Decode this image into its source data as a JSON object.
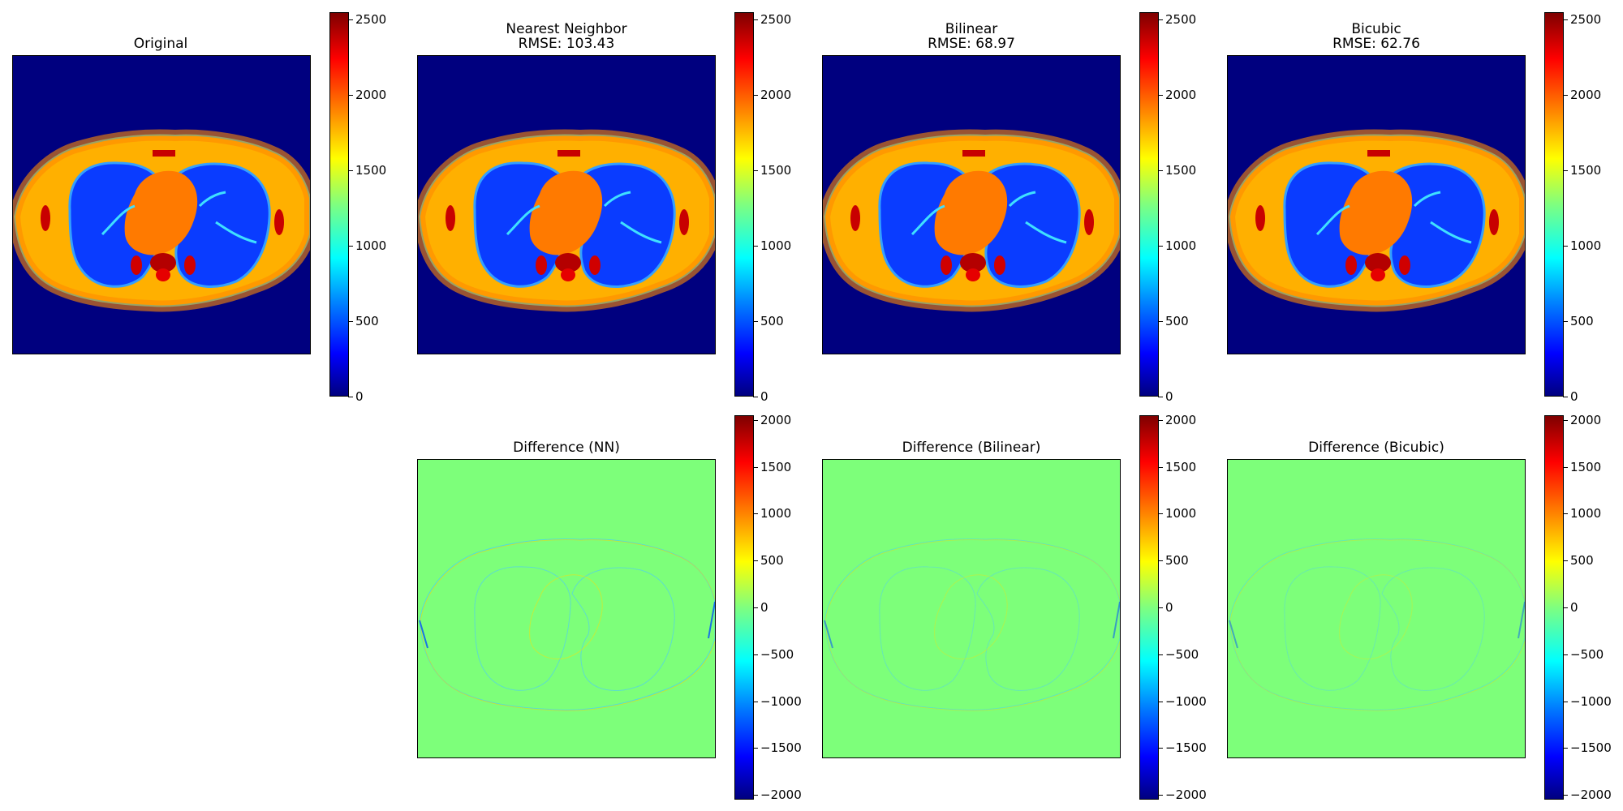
{
  "chart_data": [
    {
      "type": "heatmap",
      "title": "Original",
      "colormap": "jet",
      "colorbar_ticks": [
        "0",
        "500",
        "1000",
        "1500",
        "2000",
        "2500"
      ],
      "colorbar_range": [
        0,
        2550
      ]
    },
    {
      "type": "heatmap",
      "title": "Nearest Neighbor\nRMSE: 103.43",
      "rmse": 103.43,
      "colormap": "jet",
      "colorbar_ticks": [
        "0",
        "500",
        "1000",
        "1500",
        "2000",
        "2500"
      ],
      "colorbar_range": [
        0,
        2550
      ]
    },
    {
      "type": "heatmap",
      "title": "Bilinear\nRMSE: 68.97",
      "rmse": 68.97,
      "colormap": "jet",
      "colorbar_ticks": [
        "0",
        "500",
        "1000",
        "1500",
        "2000",
        "2500"
      ],
      "colorbar_range": [
        0,
        2550
      ]
    },
    {
      "type": "heatmap",
      "title": "Bicubic\nRMSE: 62.76",
      "rmse": 62.76,
      "colormap": "jet",
      "colorbar_ticks": [
        "0",
        "500",
        "1000",
        "1500",
        "2000",
        "2500"
      ],
      "colorbar_range": [
        0,
        2550
      ]
    },
    {
      "type": "heatmap",
      "title": "Difference (NN)",
      "colormap": "jet",
      "colorbar_ticks": [
        "−2000",
        "−1500",
        "−1000",
        "−500",
        "0",
        "500",
        "1000",
        "1500",
        "2000"
      ],
      "colorbar_range": [
        -2050,
        2050
      ]
    },
    {
      "type": "heatmap",
      "title": "Difference (Bilinear)",
      "colormap": "jet",
      "colorbar_ticks": [
        "−2000",
        "−1500",
        "−1000",
        "−500",
        "0",
        "500",
        "1000",
        "1500",
        "2000"
      ],
      "colorbar_range": [
        -2050,
        2050
      ]
    },
    {
      "type": "heatmap",
      "title": "Difference (Bicubic)",
      "colormap": "jet",
      "colorbar_ticks": [
        "−2000",
        "−1500",
        "−1000",
        "−500",
        "0",
        "500",
        "1000",
        "1500",
        "2000"
      ],
      "colorbar_range": [
        -2050,
        2050
      ]
    }
  ],
  "titles": {
    "original": "Original",
    "nn_line1": "Nearest Neighbor",
    "nn_line2": "RMSE: 103.43",
    "bilinear_line1": "Bilinear",
    "bilinear_line2": "RMSE: 68.97",
    "bicubic_line1": "Bicubic",
    "bicubic_line2": "RMSE: 62.76",
    "diff_nn": "Difference (NN)",
    "diff_bilinear": "Difference (Bilinear)",
    "diff_bicubic": "Difference (Bicubic)"
  },
  "colors": {
    "background": "#00007f",
    "diff_background": "#7dff7a"
  }
}
